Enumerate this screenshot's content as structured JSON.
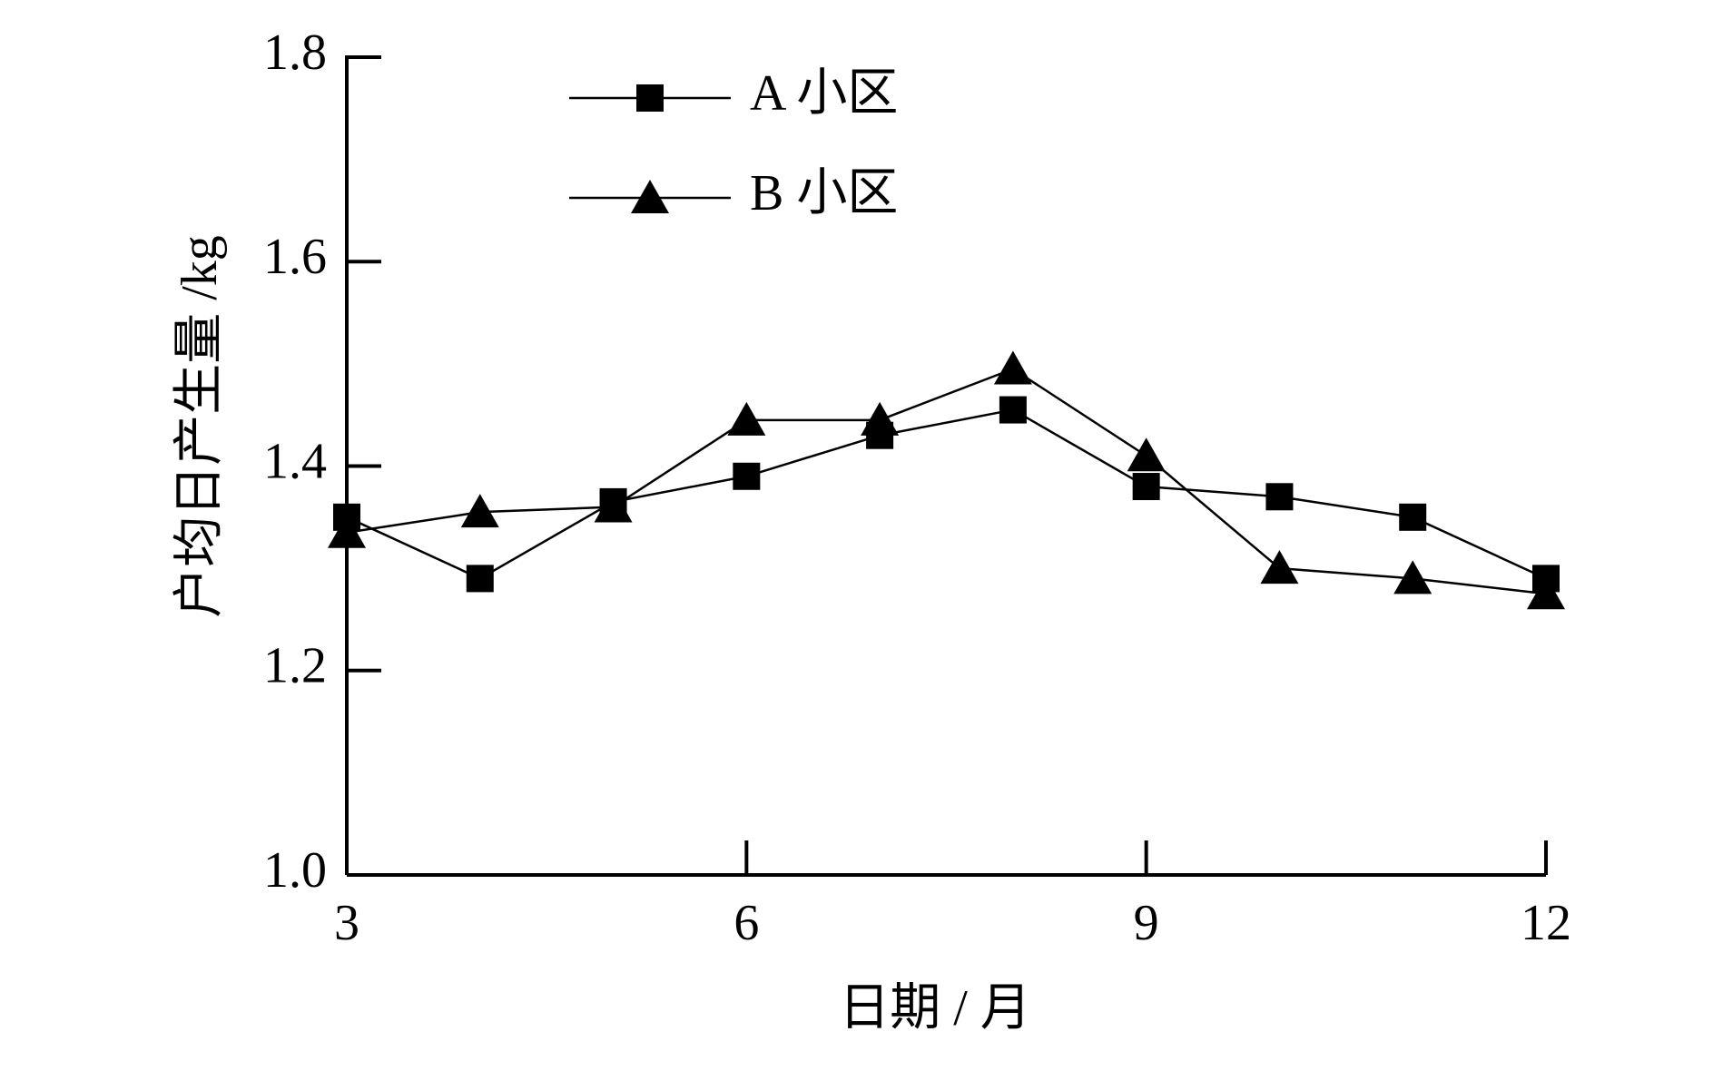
{
  "chart_data": {
    "type": "line",
    "x_label": "日期 / 月",
    "y_label": "户均日产生量 /kg",
    "x": [
      3,
      4,
      5,
      6,
      7,
      8,
      9,
      10,
      11,
      12
    ],
    "series": [
      {
        "name": "A 小区",
        "color": "#000000",
        "marker": "square",
        "values": [
          1.35,
          1.29,
          1.365,
          1.39,
          1.43,
          1.455,
          1.38,
          1.37,
          1.35,
          1.29
        ]
      },
      {
        "name": "B 小区",
        "color": "#000000",
        "marker": "triangle",
        "values": [
          1.335,
          1.355,
          1.36,
          1.445,
          1.445,
          1.495,
          1.41,
          1.3,
          1.29,
          1.275
        ]
      }
    ],
    "xlim": [
      3,
      12
    ],
    "xticks": [
      3,
      6,
      9,
      12
    ],
    "ylim": [
      1.0,
      1.8
    ],
    "yticks": [
      {
        "value": 1.0,
        "label": "1.0"
      },
      1.2,
      1.4,
      1.6,
      1.8
    ],
    "grid": false,
    "legend": "upper-left"
  }
}
